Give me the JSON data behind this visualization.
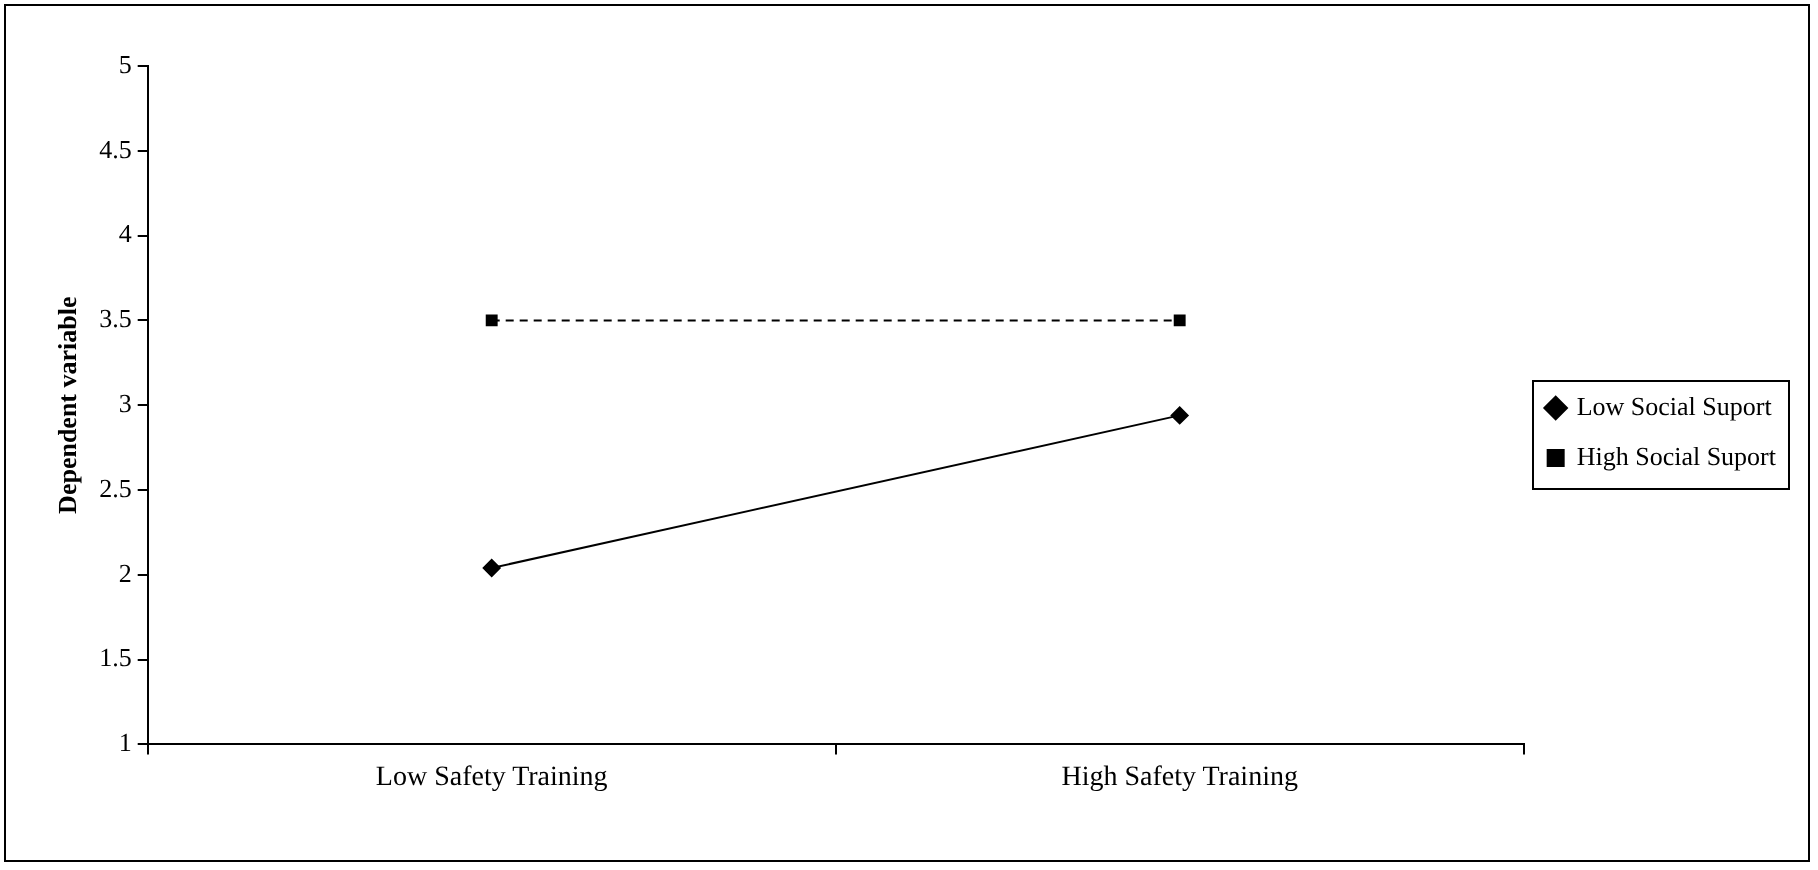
{
  "chart_data": {
    "type": "line",
    "ylabel": "Dependent variable",
    "categories": [
      "Low Safety Training",
      "High Safety Training"
    ],
    "series": [
      {
        "name": "Low Social Suport",
        "color": "#000000",
        "values": [
          2.04,
          2.94
        ],
        "marker": "diamond",
        "line_style": "solid"
      },
      {
        "name": "High Social Suport",
        "color": "#000000",
        "values": [
          3.5,
          3.5
        ],
        "marker": "square",
        "line_style": "dashed"
      }
    ],
    "ylim": [
      1,
      5
    ],
    "yticks": [
      1,
      1.5,
      2,
      2.5,
      3,
      3.5,
      4,
      4.5,
      5
    ],
    "grid": false,
    "legend": "right"
  }
}
